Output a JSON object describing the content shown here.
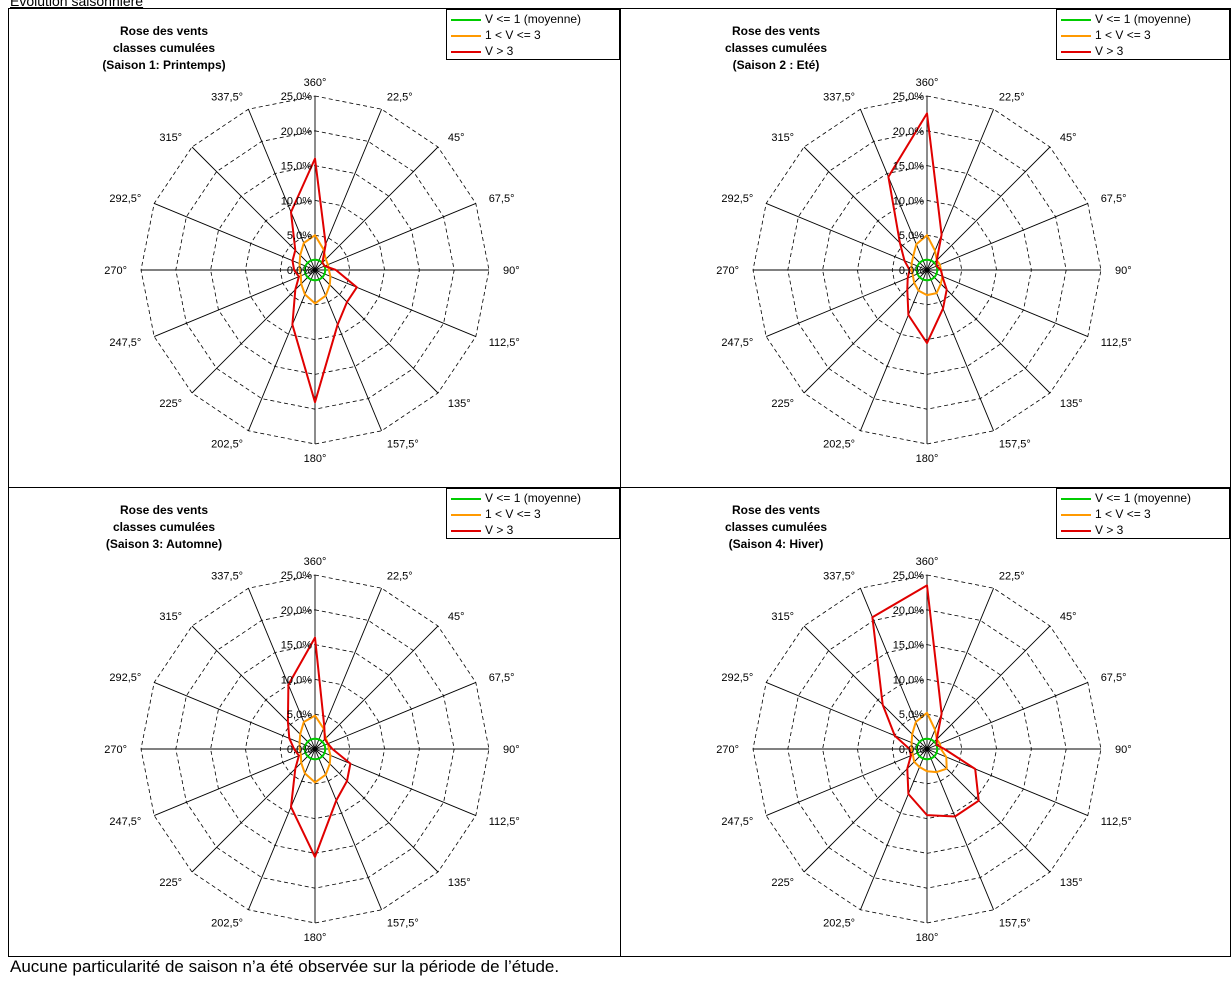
{
  "header": {
    "text": "Evolution saisonnière"
  },
  "footer": {
    "text": "Aucune particularité de saison n’a été observée sur la période de l’étude."
  },
  "legend": [
    {
      "label": "V <= 1 (moyenne)",
      "color": "#00cc00"
    },
    {
      "label": "1 < V <= 3",
      "color": "#ff9900"
    },
    {
      "label": "V > 3",
      "color": "#e00000"
    }
  ],
  "chart_data": [
    {
      "type": "radar",
      "title_lines": [
        "Rose des vents",
        "classes cumulées",
        "(Saison 1: Printemps)"
      ],
      "directions": [
        "360°",
        "22,5°",
        "45°",
        "67,5°",
        "90°",
        "112,5°",
        "135°",
        "157,5°",
        "180°",
        "202,5°",
        "225°",
        "247,5°",
        "270°",
        "292,5°",
        "315°",
        "337,5°"
      ],
      "radial_ticks": [
        "0,0%",
        "5,0%",
        "10,0%",
        "15,0%",
        "20,0%",
        "25,0%"
      ],
      "rmax": 25,
      "series": [
        {
          "name": "V <= 1 (moyenne)",
          "values": [
            1.5,
            1.5,
            1.5,
            1.5,
            1.5,
            1.5,
            1.5,
            1.5,
            1.5,
            1.5,
            1.5,
            1.5,
            1.5,
            1.5,
            1.5,
            1.5
          ]
        },
        {
          "name": "1 < V <= 3",
          "values": [
            5.0,
            3.2,
            2.2,
            2.0,
            2.0,
            2.4,
            3.0,
            4.0,
            4.8,
            3.8,
            2.8,
            2.2,
            2.2,
            2.4,
            3.0,
            4.2
          ]
        },
        {
          "name": "V > 3",
          "values": [
            16.0,
            4.0,
            1.5,
            1.5,
            3.0,
            6.5,
            6.5,
            8.5,
            19.0,
            8.5,
            4.0,
            2.5,
            3.0,
            3.5,
            4.0,
            9.0
          ]
        }
      ]
    },
    {
      "type": "radar",
      "title_lines": [
        "Rose des vents",
        "classes cumulées",
        "(Saison 2 : Eté)"
      ],
      "directions": [
        "360°",
        "22,5°",
        "45°",
        "67,5°",
        "90°",
        "112,5°",
        "135°",
        "157,5°",
        "180°",
        "202,5°",
        "225°",
        "247,5°",
        "270°",
        "292,5°",
        "315°",
        "337,5°"
      ],
      "radial_ticks": [
        "0,0%",
        "5,0%",
        "10,0%",
        "15,0%",
        "20,0%",
        "25,0%"
      ],
      "rmax": 25,
      "series": [
        {
          "name": "V <= 1 (moyenne)",
          "values": [
            1.5,
            1.5,
            1.5,
            1.5,
            1.5,
            1.5,
            1.5,
            1.5,
            1.5,
            1.5,
            1.5,
            1.5,
            1.5,
            1.5,
            1.5,
            1.5
          ]
        },
        {
          "name": "1 < V <= 3",
          "values": [
            5.0,
            3.0,
            2.0,
            2.0,
            2.0,
            2.4,
            2.8,
            3.6,
            3.6,
            3.2,
            2.6,
            2.2,
            2.2,
            2.4,
            2.8,
            4.0
          ]
        },
        {
          "name": "V > 3",
          "values": [
            22.5,
            5.5,
            2.0,
            1.5,
            2.0,
            2.4,
            4.0,
            6.0,
            10.5,
            7.0,
            4.0,
            3.0,
            2.5,
            3.5,
            5.5,
            14.5
          ]
        }
      ]
    },
    {
      "type": "radar",
      "title_lines": [
        "Rose des vents",
        "classes cumulées",
        "(Saison 3: Automne)"
      ],
      "directions": [
        "360°",
        "22,5°",
        "45°",
        "67,5°",
        "90°",
        "112,5°",
        "135°",
        "157,5°",
        "180°",
        "202,5°",
        "225°",
        "247,5°",
        "270°",
        "292,5°",
        "315°",
        "337,5°"
      ],
      "radial_ticks": [
        "0,0%",
        "5,0%",
        "10,0%",
        "15,0%",
        "20,0%",
        "25,0%"
      ],
      "rmax": 25,
      "series": [
        {
          "name": "V <= 1 (moyenne)",
          "values": [
            1.5,
            1.5,
            1.5,
            1.5,
            1.5,
            1.5,
            1.5,
            1.5,
            1.5,
            1.5,
            1.5,
            1.5,
            1.5,
            1.5,
            1.5,
            1.5
          ]
        },
        {
          "name": "1 < V <= 3",
          "values": [
            4.8,
            3.2,
            2.2,
            2.0,
            2.0,
            2.4,
            3.0,
            4.0,
            4.8,
            3.8,
            2.8,
            2.2,
            2.2,
            2.4,
            3.0,
            4.2
          ]
        },
        {
          "name": "V > 3",
          "values": [
            16.0,
            3.5,
            2.0,
            2.0,
            2.5,
            5.5,
            6.5,
            8.0,
            15.5,
            9.0,
            4.0,
            2.5,
            3.0,
            4.0,
            5.5,
            10.0
          ]
        }
      ]
    },
    {
      "type": "radar",
      "title_lines": [
        "Rose des vents",
        "classes cumulées",
        "(Saison 4: Hiver)"
      ],
      "directions": [
        "360°",
        "22,5°",
        "45°",
        "67,5°",
        "90°",
        "112,5°",
        "135°",
        "157,5°",
        "180°",
        "202,5°",
        "225°",
        "247,5°",
        "270°",
        "292,5°",
        "315°",
        "337,5°"
      ],
      "radial_ticks": [
        "0,0%",
        "5,0%",
        "10,0%",
        "15,0%",
        "20,0%",
        "25,0%"
      ],
      "rmax": 25,
      "series": [
        {
          "name": "V <= 1 (moyenne)",
          "values": [
            1.5,
            1.5,
            1.5,
            1.5,
            1.5,
            1.5,
            1.5,
            1.5,
            1.5,
            1.5,
            1.5,
            1.5,
            1.5,
            1.5,
            1.5,
            1.5
          ]
        },
        {
          "name": "1 < V <= 3",
          "values": [
            5.2,
            3.0,
            2.0,
            2.0,
            2.0,
            3.0,
            4.0,
            3.6,
            3.2,
            2.8,
            2.6,
            2.2,
            2.2,
            2.4,
            3.0,
            4.2
          ]
        },
        {
          "name": "V > 3",
          "values": [
            23.5,
            5.5,
            2.0,
            1.5,
            2.5,
            7.5,
            10.5,
            10.5,
            9.5,
            7.0,
            4.0,
            2.5,
            2.5,
            5.0,
            9.0,
            20.5
          ]
        }
      ]
    }
  ]
}
